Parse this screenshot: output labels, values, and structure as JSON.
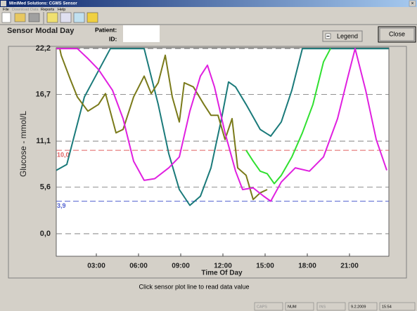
{
  "window": {
    "title": "MiniMed Solutions: CGMS Sensor"
  },
  "menu": [
    "File",
    "Download Data",
    "Reports",
    "Help"
  ],
  "header": {
    "title": "Sensor Modal Day",
    "patient_label": "Patient:",
    "id_label": "ID:",
    "legend_button": "Legend",
    "close_button": "Close"
  },
  "chart_data": {
    "type": "line",
    "xlabel": "Time Of Day",
    "ylabel": "Glucose - mmol/L",
    "xlim": [
      0.15,
      23.8
    ],
    "ylim": [
      -2.7,
      22.3
    ],
    "xticks": [
      {
        "value": 3,
        "label": "03:00"
      },
      {
        "value": 6,
        "label": "06:00"
      },
      {
        "value": 9,
        "label": "09:00"
      },
      {
        "value": 12,
        "label": "12:00"
      },
      {
        "value": 15,
        "label": "15:00"
      },
      {
        "value": 18,
        "label": "18:00"
      },
      {
        "value": 21,
        "label": "21:00"
      }
    ],
    "yticks": [
      {
        "value": 0,
        "label": "0,0"
      },
      {
        "value": 5.6,
        "label": "5,6"
      },
      {
        "value": 11.1,
        "label": "11,1"
      },
      {
        "value": 16.7,
        "label": "16,7"
      },
      {
        "value": 22.2,
        "label": "22,2"
      }
    ],
    "grid": true,
    "thresholds": [
      {
        "value": 10,
        "label": "10,0",
        "color": "#e06060"
      },
      {
        "value": 3.9,
        "label": "3,9",
        "color": "#5060d0"
      }
    ],
    "series": [
      {
        "color": "#1a7a7a",
        "x": [
          0.15,
          0.9,
          2.15,
          4,
          6.4,
          7.4,
          8.15,
          8.9,
          9.65,
          10.4,
          11.15,
          11.9,
          12.4,
          12.9,
          13.65,
          14.65,
          15.4,
          16.15,
          16.9,
          17.65,
          23.8
        ],
        "values": [
          7.6,
          8.3,
          16.4,
          22.2,
          22.2,
          15.5,
          9.6,
          5.3,
          3.4,
          4.5,
          7.9,
          13.8,
          18.2,
          17.6,
          15.5,
          12.5,
          11.7,
          13.4,
          17.2,
          22.2,
          22.2
        ]
      },
      {
        "color": "#7a7a1a",
        "x": [
          0.15,
          0.4,
          0.5,
          1.15,
          1.65,
          2.4,
          3.15,
          3.65,
          4.4,
          4.9,
          5.65,
          6.4,
          6.9,
          7.4,
          7.9,
          8.4,
          8.9,
          9.25,
          9.9,
          10.65,
          11.15,
          11.65,
          12.15,
          12.65,
          13.05,
          13.65,
          14.15,
          14.65,
          15.15
        ],
        "values": [
          22.2,
          22.2,
          21.4,
          18.5,
          16.4,
          14.7,
          15.5,
          16.8,
          12.1,
          12.5,
          16.4,
          18.9,
          16.8,
          18.1,
          21.4,
          16.4,
          13.4,
          18.1,
          17.6,
          15.5,
          14.2,
          14.2,
          11.3,
          13.8,
          7.9,
          7.0,
          4.1,
          4.9,
          5.3
        ]
      },
      {
        "color": "#e020e0",
        "x": [
          0.15,
          1.65,
          2.4,
          3.15,
          4.15,
          4.9,
          5.65,
          6.4,
          7.15,
          8.15,
          8.9,
          9.65,
          10.4,
          10.9,
          11.4,
          12.15,
          12.9,
          13.4,
          14.15,
          14.9,
          15.4,
          16.15,
          17.15,
          18.15,
          19.15,
          20.15,
          20.9,
          21.4,
          22.15,
          22.9,
          23.65
        ],
        "values": [
          22.2,
          22.2,
          21.0,
          19.7,
          17.2,
          13.8,
          8.7,
          6.4,
          6.6,
          7.9,
          9.2,
          14.7,
          18.9,
          20.2,
          17.6,
          12.1,
          7.5,
          5.3,
          5.5,
          4.5,
          3.9,
          6.2,
          7.9,
          7.5,
          9.2,
          13.8,
          18.9,
          22.2,
          17.2,
          11.3,
          7.6
        ]
      },
      {
        "color": "#30e030",
        "x": [
          13.65,
          14.15,
          14.65,
          15.15,
          15.65,
          16.15,
          16.9,
          17.65,
          18.4,
          19.15,
          19.65
        ],
        "values": [
          10.0,
          8.7,
          7.5,
          7.2,
          6.0,
          7.0,
          9.2,
          12.1,
          15.5,
          20.6,
          22.2
        ]
      }
    ]
  },
  "hint": "Click sensor plot line to read data value",
  "status_bar": [
    "CAPS",
    "NUM",
    "INS",
    "9.2.2009",
    "15:54"
  ]
}
